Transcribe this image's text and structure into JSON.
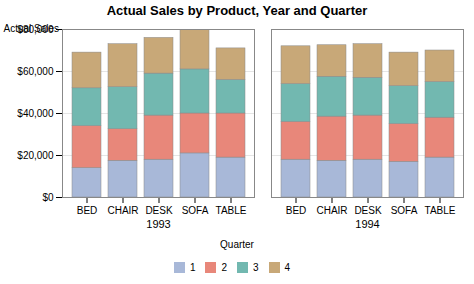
{
  "chart_data": {
    "type": "bar",
    "stacked": true,
    "title": "Actual Sales by Product, Year and Quarter",
    "ylabel": "Actual Sales",
    "groups": [
      "1993",
      "1994"
    ],
    "categories": [
      "BED",
      "CHAIR",
      "DESK",
      "SOFA",
      "TABLE"
    ],
    "series": [
      {
        "name": "1",
        "color": "#a8b8d8",
        "values": [
          [
            14000,
            17500,
            18000,
            21000,
            19000
          ],
          [
            18000,
            17500,
            18000,
            17000,
            19000
          ]
        ]
      },
      {
        "name": "2",
        "color": "#e8877a",
        "values": [
          [
            20000,
            15000,
            21000,
            19000,
            21000
          ],
          [
            18000,
            21000,
            21000,
            18000,
            19000
          ]
        ]
      },
      {
        "name": "3",
        "color": "#72b8b0",
        "values": [
          [
            18000,
            20000,
            20000,
            21000,
            16000
          ],
          [
            18000,
            19000,
            18000,
            18000,
            17000
          ]
        ]
      },
      {
        "name": "4",
        "color": "#c8a878",
        "values": [
          [
            17000,
            20500,
            17000,
            19000,
            15000
          ],
          [
            18000,
            15000,
            16000,
            16000,
            15000
          ]
        ]
      }
    ],
    "legend_title": "Quarter",
    "legend": "bottom",
    "ylim": [
      0,
      80000
    ],
    "yticks": [
      {
        "value": 0,
        "label": "$0"
      },
      {
        "value": 20000,
        "label": "$20,000"
      },
      {
        "value": 40000,
        "label": "$40,000"
      },
      {
        "value": 60000,
        "label": "$60,000"
      },
      {
        "value": 80000,
        "label": "$80,000"
      }
    ],
    "grid": true
  }
}
